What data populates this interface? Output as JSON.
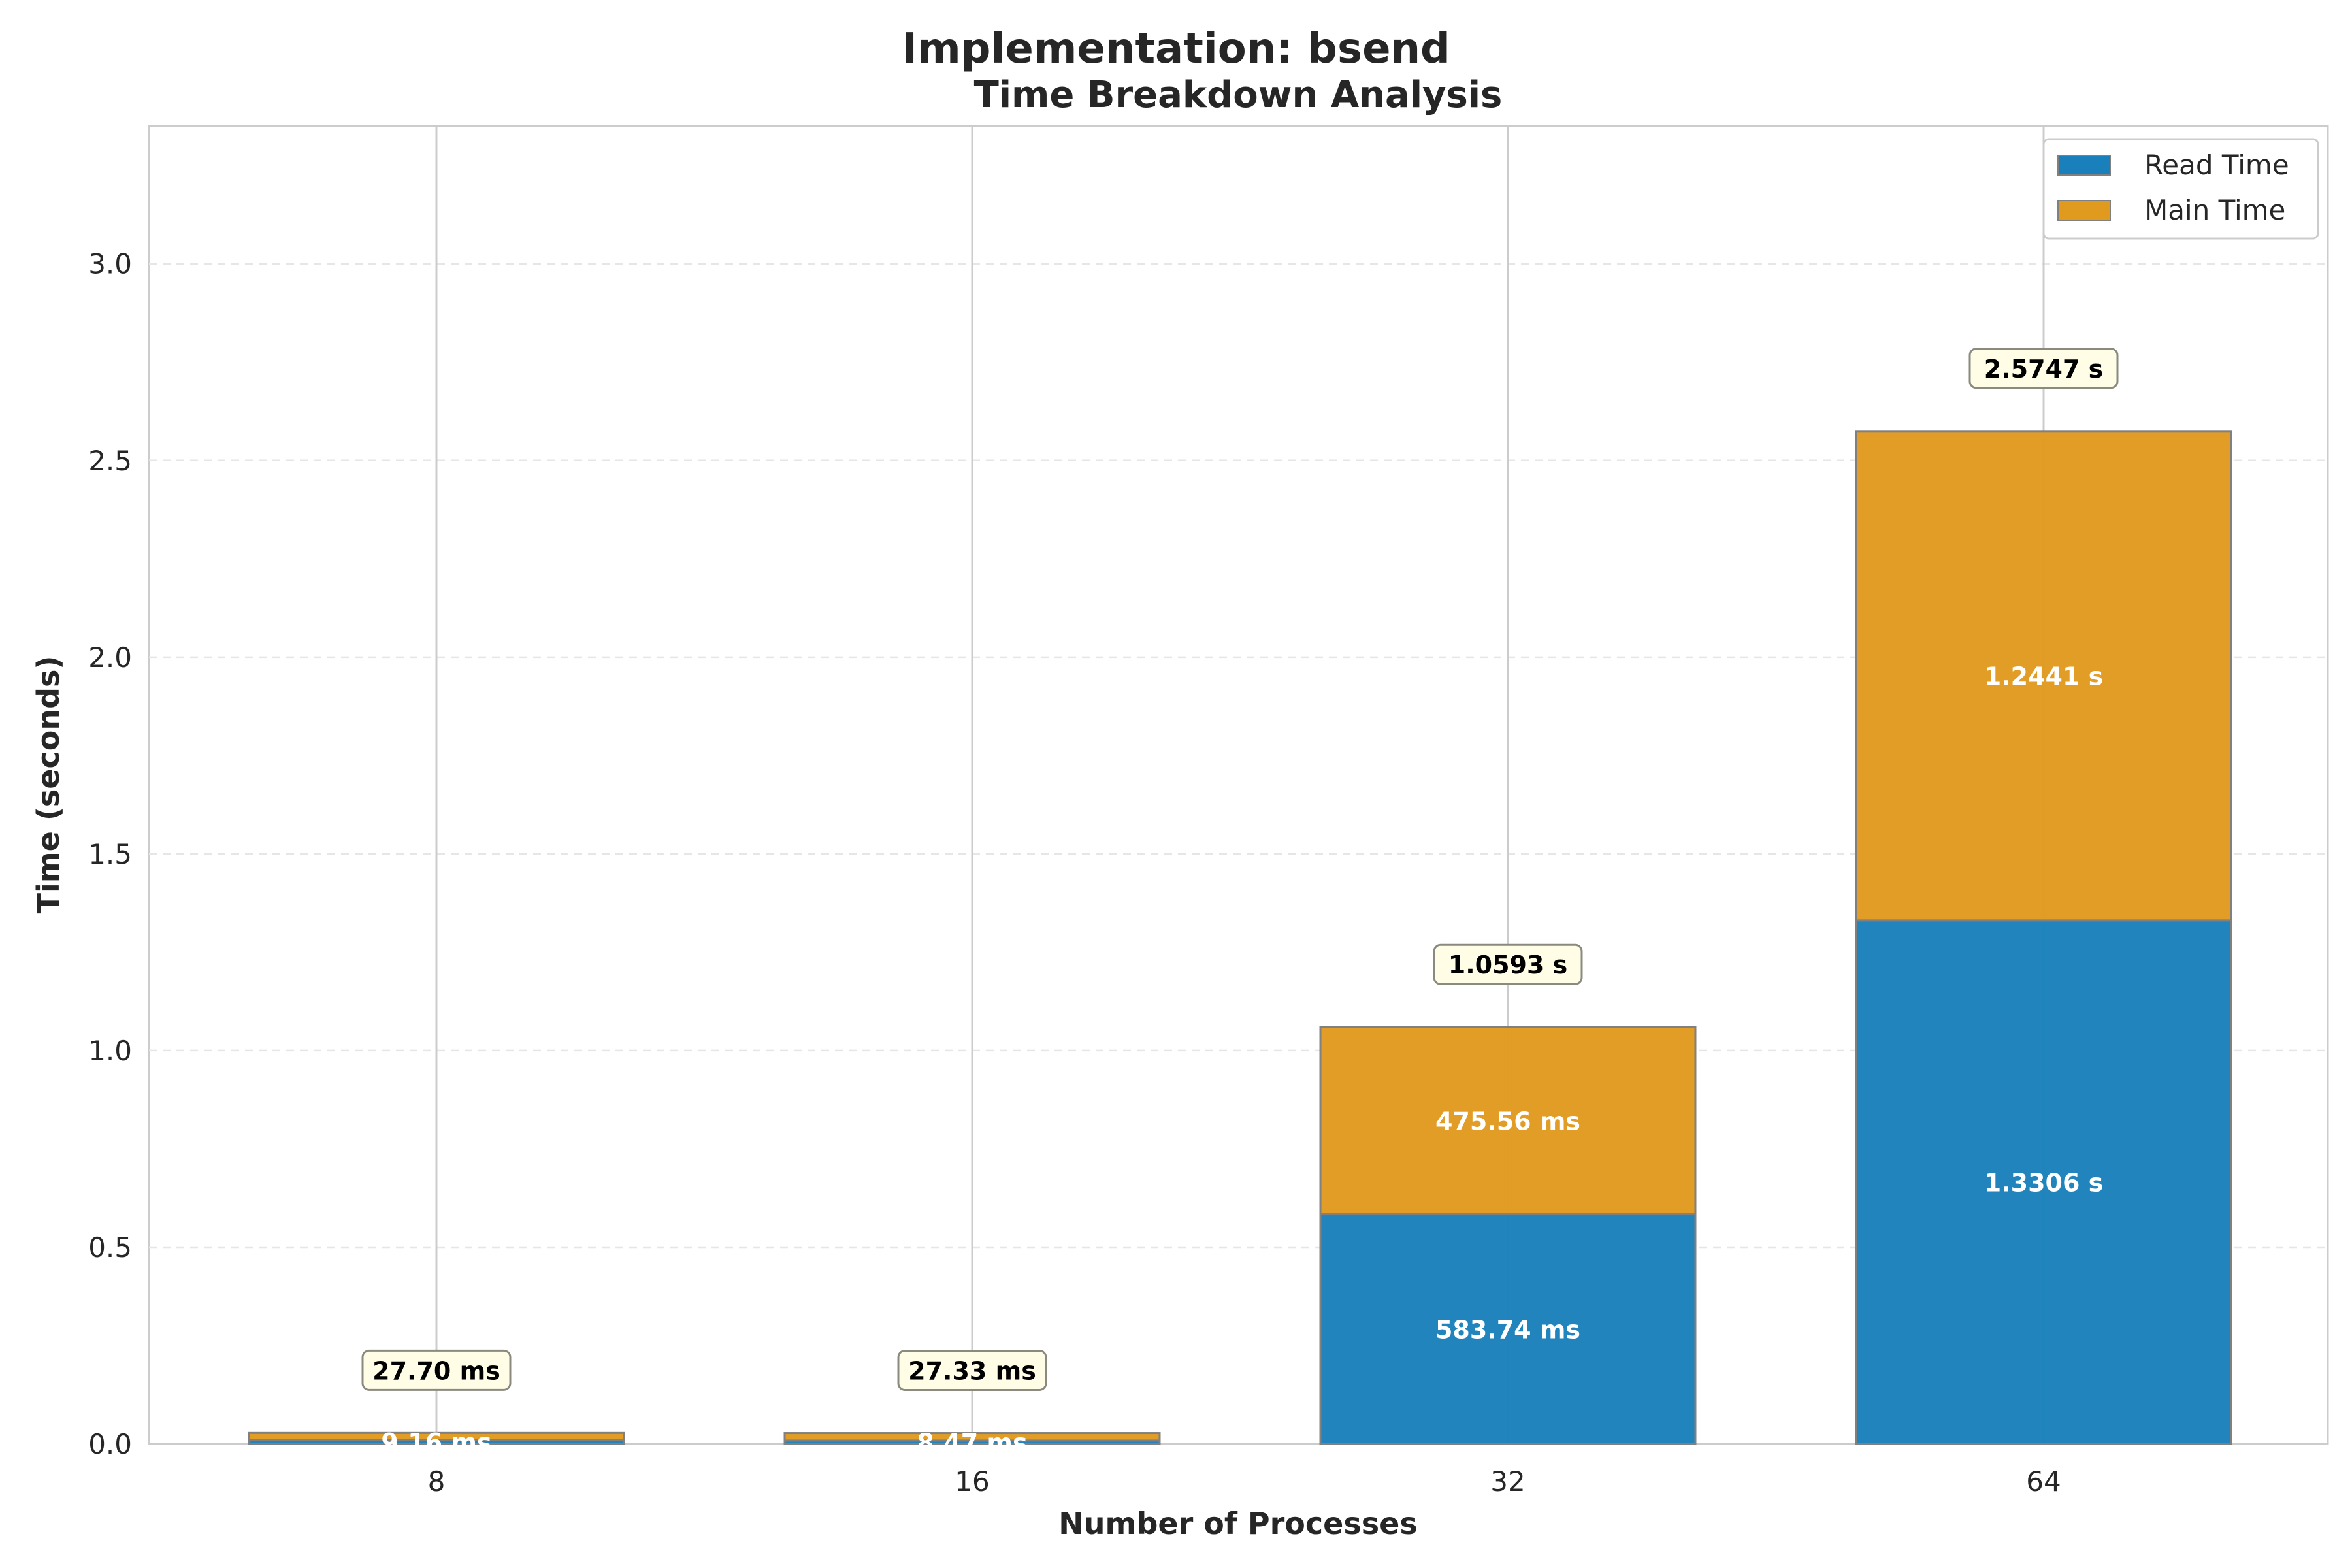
{
  "chart_data": {
    "type": "bar",
    "stacked": true,
    "title": "Implementation: bsend",
    "subtitle": "Time Breakdown Analysis",
    "xlabel": "Number of Processes",
    "ylabel": "Time (seconds)",
    "categories": [
      "8",
      "16",
      "32",
      "64"
    ],
    "ylim": [
      0,
      3.35
    ],
    "yticks": [
      "0.0",
      "0.5",
      "1.0",
      "1.5",
      "2.0",
      "2.5",
      "3.0"
    ],
    "ytick_values": [
      0,
      0.5,
      1.0,
      1.5,
      2.0,
      2.5,
      3.0
    ],
    "grid": true,
    "legend_position": "top-right",
    "series": [
      {
        "name": "Read Time",
        "color": "#1a80bb",
        "values": [
          0.00916,
          0.00847,
          0.58374,
          1.3306
        ],
        "labels": [
          "9.16 ms",
          "8.47 ms",
          "583.74 ms",
          "1.3306 s"
        ]
      },
      {
        "name": "Main Time",
        "color": "#e09a1e",
        "values": [
          0.01854,
          0.01886,
          0.47556,
          1.2441
        ],
        "labels": [
          "",
          "",
          "475.56 ms",
          "1.2441 s"
        ]
      }
    ],
    "totals": [
      0.0277,
      0.02733,
      1.0593,
      2.5747
    ],
    "total_labels": [
      "27.70 ms",
      "27.33 ms",
      "1.0593 s",
      "2.5747 s"
    ]
  }
}
